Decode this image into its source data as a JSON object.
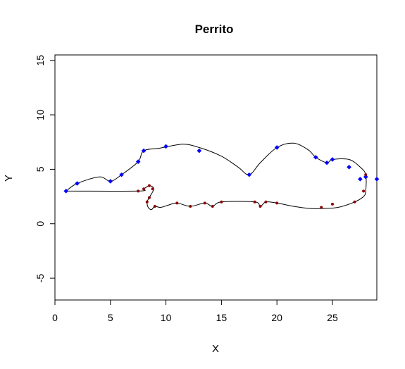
{
  "chart_data": {
    "type": "scatter",
    "title": "Perrito",
    "xlabel": "X",
    "ylabel": "Y",
    "xlim": [
      0,
      29
    ],
    "ylim": [
      -7,
      15.5
    ],
    "xticks": [
      "0",
      "5",
      "10",
      "15",
      "20",
      "25"
    ],
    "yticks": [
      "-5",
      "0",
      "5",
      "10",
      "15"
    ],
    "grid": false,
    "legend": "none",
    "series": [
      {
        "marker": "diamond",
        "color": "#0000ff",
        "points": [
          [
            1.0,
            3.0
          ],
          [
            2.0,
            3.7
          ],
          [
            5.0,
            3.9
          ],
          [
            6.0,
            4.5
          ],
          [
            7.5,
            5.7
          ],
          [
            8.0,
            6.7
          ],
          [
            10.0,
            7.1
          ],
          [
            13.0,
            6.7
          ],
          [
            17.5,
            4.5
          ],
          [
            20.0,
            7.0
          ],
          [
            23.5,
            6.1
          ],
          [
            24.5,
            5.6
          ],
          [
            25.0,
            5.9
          ],
          [
            26.5,
            5.2
          ],
          [
            27.5,
            4.1
          ],
          [
            28.0,
            4.3
          ],
          [
            29.0,
            4.1
          ]
        ]
      },
      {
        "marker": "circle",
        "color": "#8b0000",
        "points": [
          [
            7.5,
            3.0
          ],
          [
            8.0,
            3.2
          ],
          [
            8.5,
            3.5
          ],
          [
            8.8,
            3.2
          ],
          [
            8.5,
            2.4
          ],
          [
            8.3,
            2.0
          ],
          [
            9.0,
            1.6
          ],
          [
            11.0,
            1.9
          ],
          [
            12.2,
            1.6
          ],
          [
            13.5,
            1.9
          ],
          [
            14.2,
            1.6
          ],
          [
            15.0,
            2.0
          ],
          [
            18.0,
            2.0
          ],
          [
            18.5,
            1.6
          ],
          [
            19.0,
            2.0
          ],
          [
            20.0,
            1.9
          ],
          [
            24.0,
            1.5
          ],
          [
            25.0,
            1.8
          ],
          [
            27.0,
            2.0
          ],
          [
            27.8,
            3.0
          ],
          [
            28.0,
            4.5
          ]
        ]
      }
    ],
    "curves": [
      {
        "color": "#000000",
        "points": [
          [
            1.0,
            3.0
          ],
          [
            2.0,
            3.7
          ],
          [
            4.0,
            4.3
          ],
          [
            5.0,
            3.9
          ],
          [
            6.0,
            4.5
          ],
          [
            7.5,
            5.7
          ],
          [
            8.0,
            6.7
          ],
          [
            9.5,
            6.95
          ],
          [
            11.5,
            7.3
          ],
          [
            13.0,
            7.0
          ],
          [
            15.0,
            6.2
          ],
          [
            16.5,
            5.2
          ],
          [
            17.5,
            4.5
          ],
          [
            18.5,
            5.6
          ],
          [
            20.0,
            7.0
          ],
          [
            21.5,
            7.4
          ],
          [
            22.8,
            6.8
          ],
          [
            23.5,
            6.1
          ],
          [
            24.5,
            5.6
          ],
          [
            25.0,
            5.9
          ],
          [
            26.5,
            5.9
          ],
          [
            27.5,
            5.2
          ],
          [
            28.0,
            4.5
          ],
          [
            28.0,
            3.0
          ],
          [
            27.8,
            2.5
          ],
          [
            27.0,
            2.0
          ],
          [
            25.5,
            1.5
          ],
          [
            24.0,
            1.4
          ],
          [
            23.0,
            1.4
          ],
          [
            21.5,
            1.6
          ],
          [
            20.0,
            1.9
          ],
          [
            19.0,
            2.0
          ],
          [
            18.5,
            1.6
          ],
          [
            18.0,
            2.0
          ],
          [
            15.0,
            2.0
          ],
          [
            14.2,
            1.6
          ],
          [
            13.5,
            1.9
          ],
          [
            12.2,
            1.6
          ],
          [
            11.0,
            1.9
          ],
          [
            10.2,
            1.7
          ],
          [
            9.5,
            1.5
          ],
          [
            9.0,
            1.6
          ],
          [
            8.7,
            1.3
          ],
          [
            8.4,
            1.5
          ],
          [
            8.3,
            2.0
          ],
          [
            8.5,
            2.4
          ],
          [
            8.9,
            3.2
          ],
          [
            8.5,
            3.5
          ],
          [
            8.0,
            3.2
          ],
          [
            7.5,
            3.0
          ],
          [
            1.0,
            3.0
          ]
        ]
      }
    ]
  }
}
